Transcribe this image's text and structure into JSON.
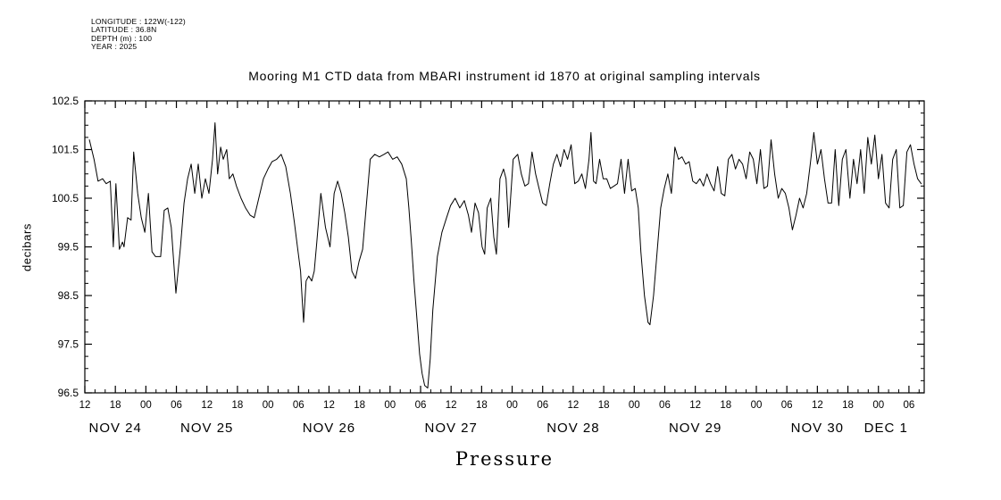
{
  "header_info": {
    "line1": "LONGITUDE : 122W(-122)",
    "line2": "LATITUDE : 36.8N",
    "line3": "DEPTH (m) : 100",
    "line4": "YEAR : 2025"
  },
  "colors": {
    "line": "#000000",
    "background": "#ffffff",
    "text": "#000000"
  },
  "chart_data": {
    "type": "line",
    "title": "Mooring M1 CTD data from MBARI instrument id 1870 at original sampling intervals",
    "xlabel": "Pressure",
    "ylabel": "decibars",
    "grid": false,
    "legend": "none",
    "x_axis": {
      "unit": "hours since NOV 24 12:00 (6-hour ticks)",
      "range": [
        0,
        165
      ],
      "hour_ticks": [
        {
          "h": 0,
          "label": "12"
        },
        {
          "h": 6,
          "label": "18"
        },
        {
          "h": 12,
          "label": "00"
        },
        {
          "h": 18,
          "label": "06"
        },
        {
          "h": 24,
          "label": "12"
        },
        {
          "h": 30,
          "label": "18"
        },
        {
          "h": 36,
          "label": "00"
        },
        {
          "h": 42,
          "label": "06"
        },
        {
          "h": 48,
          "label": "12"
        },
        {
          "h": 54,
          "label": "18"
        },
        {
          "h": 60,
          "label": "00"
        },
        {
          "h": 66,
          "label": "06"
        },
        {
          "h": 72,
          "label": "12"
        },
        {
          "h": 78,
          "label": "18"
        },
        {
          "h": 84,
          "label": "00"
        },
        {
          "h": 90,
          "label": "06"
        },
        {
          "h": 96,
          "label": "12"
        },
        {
          "h": 102,
          "label": "18"
        },
        {
          "h": 108,
          "label": "00"
        },
        {
          "h": 114,
          "label": "06"
        },
        {
          "h": 120,
          "label": "12"
        },
        {
          "h": 126,
          "label": "18"
        },
        {
          "h": 132,
          "label": "00"
        },
        {
          "h": 138,
          "label": "06"
        },
        {
          "h": 144,
          "label": "12"
        },
        {
          "h": 150,
          "label": "18"
        },
        {
          "h": 156,
          "label": "00"
        },
        {
          "h": 162,
          "label": "06"
        }
      ],
      "day_labels": [
        {
          "h": 6,
          "label": "NOV 24"
        },
        {
          "h": 24,
          "label": "NOV 25"
        },
        {
          "h": 48,
          "label": "NOV 26"
        },
        {
          "h": 72,
          "label": "NOV 27"
        },
        {
          "h": 96,
          "label": "NOV 28"
        },
        {
          "h": 120,
          "label": "NOV 29"
        },
        {
          "h": 144,
          "label": "NOV 30"
        },
        {
          "h": 157.5,
          "label": "DEC 1"
        }
      ]
    },
    "y_axis": {
      "range": [
        96.5,
        102.5
      ],
      "ticks": [
        {
          "v": 96.5,
          "label": "96.5"
        },
        {
          "v": 97.5,
          "label": "97.5"
        },
        {
          "v": 98.5,
          "label": "98.5"
        },
        {
          "v": 99.5,
          "label": "99.5"
        },
        {
          "v": 100.5,
          "label": "100.5"
        },
        {
          "v": 101.5,
          "label": "101.5"
        },
        {
          "v": 102.5,
          "label": "102.5"
        }
      ]
    },
    "series": [
      {
        "name": "pressure",
        "points": [
          [
            0.9,
            101.7
          ],
          [
            1.8,
            101.3
          ],
          [
            2.6,
            100.85
          ],
          [
            3.5,
            100.9
          ],
          [
            4.2,
            100.8
          ],
          [
            5.0,
            100.85
          ],
          [
            5.6,
            99.5
          ],
          [
            6.1,
            100.8
          ],
          [
            6.8,
            99.45
          ],
          [
            7.4,
            99.6
          ],
          [
            7.7,
            99.5
          ],
          [
            8.4,
            100.1
          ],
          [
            9.1,
            100.05
          ],
          [
            9.6,
            101.45
          ],
          [
            10.4,
            100.6
          ],
          [
            11.1,
            100.1
          ],
          [
            11.8,
            99.8
          ],
          [
            12.5,
            100.6
          ],
          [
            13.2,
            99.4
          ],
          [
            13.9,
            99.3
          ],
          [
            14.9,
            99.3
          ],
          [
            15.6,
            100.25
          ],
          [
            16.3,
            100.3
          ],
          [
            17.0,
            99.9
          ],
          [
            17.9,
            98.55
          ],
          [
            18.8,
            99.5
          ],
          [
            19.5,
            100.4
          ],
          [
            20.2,
            100.9
          ],
          [
            20.9,
            101.2
          ],
          [
            21.6,
            100.6
          ],
          [
            22.3,
            101.2
          ],
          [
            23.0,
            100.5
          ],
          [
            23.7,
            100.9
          ],
          [
            24.4,
            100.6
          ],
          [
            25.1,
            101.3
          ],
          [
            25.6,
            102.05
          ],
          [
            26.1,
            101.0
          ],
          [
            26.7,
            101.55
          ],
          [
            27.2,
            101.3
          ],
          [
            27.9,
            101.5
          ],
          [
            28.4,
            100.9
          ],
          [
            29.1,
            101.0
          ],
          [
            29.8,
            100.75
          ],
          [
            30.7,
            100.5
          ],
          [
            31.6,
            100.3
          ],
          [
            32.5,
            100.15
          ],
          [
            33.3,
            100.1
          ],
          [
            34.2,
            100.5
          ],
          [
            35.1,
            100.9
          ],
          [
            36.0,
            101.1
          ],
          [
            36.8,
            101.25
          ],
          [
            37.7,
            101.3
          ],
          [
            38.6,
            101.4
          ],
          [
            39.5,
            101.15
          ],
          [
            40.4,
            100.6
          ],
          [
            41.2,
            100.0
          ],
          [
            41.8,
            99.5
          ],
          [
            42.4,
            99.0
          ],
          [
            42.8,
            98.3
          ],
          [
            43.0,
            97.95
          ],
          [
            43.5,
            98.8
          ],
          [
            44.0,
            98.9
          ],
          [
            44.6,
            98.8
          ],
          [
            45.1,
            99.0
          ],
          [
            45.6,
            99.6
          ],
          [
            46.4,
            100.6
          ],
          [
            47.3,
            99.9
          ],
          [
            48.2,
            99.5
          ],
          [
            49.0,
            100.6
          ],
          [
            49.7,
            100.85
          ],
          [
            50.4,
            100.6
          ],
          [
            51.1,
            100.2
          ],
          [
            51.8,
            99.7
          ],
          [
            52.5,
            99.0
          ],
          [
            53.2,
            98.85
          ],
          [
            53.9,
            99.2
          ],
          [
            54.6,
            99.45
          ],
          [
            55.3,
            100.3
          ],
          [
            56.1,
            101.3
          ],
          [
            57.0,
            101.4
          ],
          [
            57.9,
            101.35
          ],
          [
            58.8,
            101.4
          ],
          [
            59.6,
            101.45
          ],
          [
            60.5,
            101.3
          ],
          [
            61.4,
            101.35
          ],
          [
            62.3,
            101.2
          ],
          [
            63.2,
            100.9
          ],
          [
            63.7,
            100.3
          ],
          [
            64.2,
            99.6
          ],
          [
            64.7,
            98.8
          ],
          [
            65.3,
            98.0
          ],
          [
            65.8,
            97.3
          ],
          [
            66.3,
            96.9
          ],
          [
            66.8,
            96.65
          ],
          [
            67.4,
            96.6
          ],
          [
            67.9,
            97.2
          ],
          [
            68.4,
            98.2
          ],
          [
            69.3,
            99.3
          ],
          [
            70.2,
            99.8
          ],
          [
            71.1,
            100.1
          ],
          [
            71.9,
            100.35
          ],
          [
            72.8,
            100.5
          ],
          [
            73.7,
            100.3
          ],
          [
            74.6,
            100.45
          ],
          [
            75.4,
            100.15
          ],
          [
            76.0,
            99.8
          ],
          [
            76.7,
            100.4
          ],
          [
            77.4,
            100.2
          ],
          [
            78.1,
            99.5
          ],
          [
            78.6,
            99.35
          ],
          [
            79.1,
            100.3
          ],
          [
            79.8,
            100.5
          ],
          [
            80.4,
            99.7
          ],
          [
            80.9,
            99.35
          ],
          [
            81.6,
            100.9
          ],
          [
            82.3,
            101.1
          ],
          [
            82.8,
            100.9
          ],
          [
            83.3,
            99.9
          ],
          [
            84.2,
            101.3
          ],
          [
            85.1,
            101.4
          ],
          [
            85.8,
            101.0
          ],
          [
            86.5,
            100.75
          ],
          [
            87.2,
            100.8
          ],
          [
            87.9,
            101.45
          ],
          [
            88.6,
            101.0
          ],
          [
            89.3,
            100.7
          ],
          [
            90.0,
            100.4
          ],
          [
            90.7,
            100.35
          ],
          [
            91.4,
            100.8
          ],
          [
            92.1,
            101.2
          ],
          [
            92.8,
            101.4
          ],
          [
            93.5,
            101.15
          ],
          [
            94.2,
            101.5
          ],
          [
            94.9,
            101.3
          ],
          [
            95.6,
            101.6
          ],
          [
            96.3,
            100.8
          ],
          [
            97.0,
            100.85
          ],
          [
            97.7,
            101.0
          ],
          [
            98.4,
            100.7
          ],
          [
            99.1,
            101.3
          ],
          [
            99.5,
            101.85
          ],
          [
            100.0,
            100.85
          ],
          [
            100.5,
            100.8
          ],
          [
            101.2,
            101.3
          ],
          [
            101.9,
            100.9
          ],
          [
            102.6,
            100.9
          ],
          [
            103.3,
            100.7
          ],
          [
            104.0,
            100.75
          ],
          [
            104.7,
            100.8
          ],
          [
            105.4,
            101.3
          ],
          [
            106.1,
            100.6
          ],
          [
            106.8,
            101.3
          ],
          [
            107.5,
            100.65
          ],
          [
            108.2,
            100.7
          ],
          [
            108.8,
            100.3
          ],
          [
            109.3,
            99.4
          ],
          [
            110.0,
            98.5
          ],
          [
            110.7,
            97.95
          ],
          [
            111.1,
            97.9
          ],
          [
            111.8,
            98.5
          ],
          [
            112.5,
            99.4
          ],
          [
            113.2,
            100.3
          ],
          [
            113.9,
            100.7
          ],
          [
            114.6,
            101.0
          ],
          [
            115.3,
            100.6
          ],
          [
            116.0,
            101.55
          ],
          [
            116.7,
            101.3
          ],
          [
            117.4,
            101.35
          ],
          [
            118.1,
            101.2
          ],
          [
            118.8,
            101.25
          ],
          [
            119.5,
            100.85
          ],
          [
            120.2,
            100.8
          ],
          [
            120.9,
            100.9
          ],
          [
            121.6,
            100.75
          ],
          [
            122.3,
            101.0
          ],
          [
            123.0,
            100.8
          ],
          [
            123.7,
            100.65
          ],
          [
            124.4,
            101.15
          ],
          [
            125.1,
            100.6
          ],
          [
            125.8,
            100.55
          ],
          [
            126.5,
            101.3
          ],
          [
            127.2,
            101.4
          ],
          [
            127.9,
            101.1
          ],
          [
            128.6,
            101.3
          ],
          [
            129.3,
            101.2
          ],
          [
            130.0,
            100.9
          ],
          [
            130.7,
            101.45
          ],
          [
            131.4,
            101.3
          ],
          [
            132.1,
            100.8
          ],
          [
            132.8,
            101.5
          ],
          [
            133.5,
            100.7
          ],
          [
            134.2,
            100.75
          ],
          [
            134.9,
            101.7
          ],
          [
            135.6,
            101.0
          ],
          [
            136.3,
            100.5
          ],
          [
            137.0,
            100.7
          ],
          [
            137.7,
            100.6
          ],
          [
            138.4,
            100.3
          ],
          [
            139.1,
            99.85
          ],
          [
            139.8,
            100.15
          ],
          [
            140.5,
            100.5
          ],
          [
            141.2,
            100.3
          ],
          [
            141.9,
            100.6
          ],
          [
            142.6,
            101.2
          ],
          [
            143.3,
            101.85
          ],
          [
            144.0,
            101.2
          ],
          [
            144.7,
            101.5
          ],
          [
            145.4,
            100.9
          ],
          [
            146.1,
            100.4
          ],
          [
            146.8,
            100.4
          ],
          [
            147.5,
            101.5
          ],
          [
            148.2,
            100.35
          ],
          [
            148.9,
            101.3
          ],
          [
            149.6,
            101.5
          ],
          [
            150.4,
            100.5
          ],
          [
            151.1,
            101.3
          ],
          [
            151.8,
            100.8
          ],
          [
            152.5,
            101.5
          ],
          [
            153.2,
            100.6
          ],
          [
            153.9,
            101.75
          ],
          [
            154.6,
            101.2
          ],
          [
            155.3,
            101.8
          ],
          [
            156.0,
            100.9
          ],
          [
            156.7,
            101.4
          ],
          [
            157.4,
            100.4
          ],
          [
            158.1,
            100.3
          ],
          [
            158.8,
            101.3
          ],
          [
            159.5,
            101.5
          ],
          [
            160.2,
            100.3
          ],
          [
            160.9,
            100.35
          ],
          [
            161.6,
            101.45
          ],
          [
            162.3,
            101.6
          ],
          [
            163.0,
            101.2
          ],
          [
            163.7,
            100.9
          ],
          [
            164.4,
            100.8
          ]
        ]
      }
    ]
  }
}
